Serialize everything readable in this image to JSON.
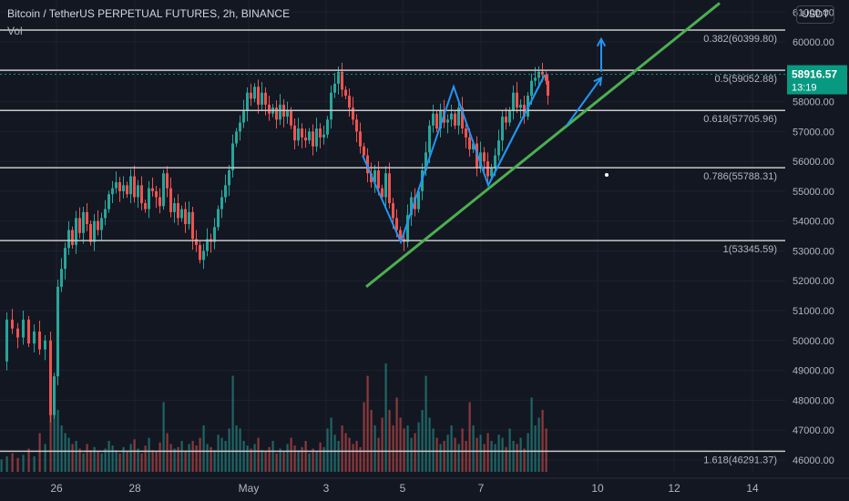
{
  "header": {
    "title": "Bitcoin / TetherUS PERPETUAL FUTURES, 2h, BINANCE",
    "indicator": "Vol",
    "currency": "USDT"
  },
  "price_badge": {
    "price": "58916.57",
    "countdown": "13:19",
    "color": "#089981"
  },
  "colors": {
    "background": "#131722",
    "up": "#26a69a",
    "down": "#ef5350",
    "fib_line": "#c9c9c9",
    "trendline": "#4caf50",
    "arrow": "#2196f3",
    "grid": "#1e222d"
  },
  "chart_data": {
    "type": "candlestick",
    "title": "Bitcoin / TetherUS PERPETUAL FUTURES, 2h, BINANCE",
    "ylim": [
      45600,
      61100
    ],
    "y_ticks": [
      "46000.00",
      "47000.00",
      "48000.00",
      "49000.00",
      "50000.00",
      "51000.00",
      "52000.00",
      "53000.00",
      "54000.00",
      "55000.00",
      "56000.00",
      "57000.00",
      "58000.00",
      "59000.00",
      "60000.00",
      "61000.00"
    ],
    "x_ticks": [
      "26",
      "28",
      "May",
      "3",
      "5",
      "7",
      "10",
      "12",
      "14"
    ],
    "fib_levels": [
      {
        "ratio": "0.382",
        "price": 60399.8,
        "label": "0.382(60399.80)"
      },
      {
        "ratio": "0.5",
        "price": 59052.88,
        "label": "0.5(59052.88)"
      },
      {
        "ratio": "0.618",
        "price": 57705.96,
        "label": "0.618(57705.96)"
      },
      {
        "ratio": "0.786",
        "price": 55788.31,
        "label": "0.786(55788.31)"
      },
      {
        "ratio": "1",
        "price": 53345.59,
        "label": "1(53345.59)"
      },
      {
        "ratio": "1.618",
        "price": 46291.37,
        "label": "1.618(46291.37)"
      }
    ],
    "price_path": [
      [
        0,
        49300
      ],
      [
        6,
        50700
      ],
      [
        12,
        50400
      ],
      [
        18,
        50100
      ],
      [
        24,
        50700
      ],
      [
        30,
        49900
      ],
      [
        36,
        50300
      ],
      [
        42,
        49700
      ],
      [
        48,
        50000
      ],
      [
        54,
        47500
      ],
      [
        58,
        48800
      ],
      [
        62,
        51800
      ],
      [
        66,
        52400
      ],
      [
        70,
        53100
      ],
      [
        74,
        53700
      ],
      [
        78,
        53200
      ],
      [
        82,
        54100
      ],
      [
        86,
        53600
      ],
      [
        90,
        54300
      ],
      [
        94,
        53900
      ],
      [
        98,
        53300
      ],
      [
        102,
        54000
      ],
      [
        106,
        53700
      ],
      [
        110,
        54100
      ],
      [
        114,
        54400
      ],
      [
        118,
        54900
      ],
      [
        122,
        55100
      ],
      [
        126,
        55300
      ],
      [
        130,
        55000
      ],
      [
        134,
        55200
      ],
      [
        138,
        54900
      ],
      [
        142,
        55500
      ],
      [
        146,
        54800
      ],
      [
        150,
        55200
      ],
      [
        154,
        54600
      ],
      [
        158,
        54400
      ],
      [
        162,
        55100
      ],
      [
        166,
        55000
      ],
      [
        170,
        54800
      ],
      [
        174,
        54500
      ],
      [
        178,
        55600
      ],
      [
        182,
        55100
      ],
      [
        186,
        54300
      ],
      [
        190,
        54600
      ],
      [
        194,
        54100
      ],
      [
        198,
        54400
      ],
      [
        202,
        53900
      ],
      [
        206,
        54300
      ],
      [
        210,
        53400
      ],
      [
        214,
        53200
      ],
      [
        218,
        52700
      ],
      [
        222,
        53000
      ],
      [
        226,
        53400
      ],
      [
        230,
        53300
      ],
      [
        234,
        53800
      ],
      [
        238,
        54400
      ],
      [
        242,
        54800
      ],
      [
        246,
        55200
      ],
      [
        250,
        55700
      ],
      [
        254,
        56600
      ],
      [
        258,
        57000
      ],
      [
        262,
        57300
      ],
      [
        266,
        57700
      ],
      [
        270,
        58300
      ],
      [
        274,
        58100
      ],
      [
        278,
        58500
      ],
      [
        282,
        57900
      ],
      [
        286,
        58300
      ],
      [
        290,
        57900
      ],
      [
        294,
        57600
      ],
      [
        298,
        57800
      ],
      [
        302,
        57400
      ],
      [
        306,
        57900
      ],
      [
        310,
        57500
      ],
      [
        314,
        57700
      ],
      [
        318,
        57200
      ],
      [
        322,
        56700
      ],
      [
        326,
        57100
      ],
      [
        330,
        56800
      ],
      [
        334,
        56700
      ],
      [
        338,
        57000
      ],
      [
        342,
        56500
      ],
      [
        346,
        57100
      ],
      [
        350,
        56800
      ],
      [
        354,
        56900
      ],
      [
        358,
        57400
      ],
      [
        362,
        58300
      ],
      [
        366,
        58600
      ],
      [
        370,
        59000
      ],
      [
        374,
        58400
      ],
      [
        378,
        58200
      ],
      [
        382,
        57800
      ],
      [
        386,
        57400
      ],
      [
        390,
        57000
      ],
      [
        394,
        56500
      ],
      [
        398,
        56200
      ],
      [
        402,
        55600
      ],
      [
        406,
        55300
      ],
      [
        410,
        55700
      ],
      [
        414,
        55100
      ],
      [
        418,
        54800
      ],
      [
        422,
        55600
      ],
      [
        426,
        54600
      ],
      [
        430,
        54100
      ],
      [
        434,
        53700
      ],
      [
        438,
        53400
      ],
      [
        442,
        53300
      ],
      [
        446,
        54200
      ],
      [
        450,
        54800
      ],
      [
        454,
        54400
      ],
      [
        458,
        55000
      ],
      [
        462,
        55700
      ],
      [
        466,
        56300
      ],
      [
        470,
        57200
      ],
      [
        474,
        57600
      ],
      [
        478,
        57100
      ],
      [
        482,
        57700
      ],
      [
        486,
        57300
      ],
      [
        490,
        57400
      ],
      [
        494,
        57600
      ],
      [
        498,
        57200
      ],
      [
        502,
        57800
      ],
      [
        506,
        57100
      ],
      [
        510,
        56800
      ],
      [
        514,
        56400
      ],
      [
        518,
        56600
      ],
      [
        522,
        55800
      ],
      [
        526,
        56300
      ],
      [
        530,
        56000
      ],
      [
        534,
        55500
      ],
      [
        538,
        55800
      ],
      [
        542,
        56200
      ],
      [
        546,
        56700
      ],
      [
        550,
        57500
      ],
      [
        554,
        57300
      ],
      [
        558,
        57700
      ],
      [
        562,
        58300
      ],
      [
        566,
        57800
      ],
      [
        570,
        57900
      ],
      [
        574,
        57500
      ],
      [
        578,
        58200
      ],
      [
        582,
        58700
      ],
      [
        586,
        58800
      ],
      [
        590,
        59000
      ],
      [
        594,
        58900
      ],
      [
        598,
        58700
      ],
      [
        600,
        58200
      ]
    ],
    "volumes": [
      [
        0,
        0.08
      ],
      [
        6,
        0.1
      ],
      [
        12,
        0.12
      ],
      [
        18,
        0.09
      ],
      [
        24,
        0.11
      ],
      [
        30,
        0.15
      ],
      [
        36,
        0.1
      ],
      [
        42,
        0.25
      ],
      [
        48,
        0.18
      ],
      [
        54,
        0.55
      ],
      [
        58,
        0.45
      ],
      [
        62,
        0.4
      ],
      [
        66,
        0.3
      ],
      [
        70,
        0.25
      ],
      [
        74,
        0.22
      ],
      [
        78,
        0.18
      ],
      [
        82,
        0.2
      ],
      [
        86,
        0.15
      ],
      [
        90,
        0.12
      ],
      [
        94,
        0.18
      ],
      [
        98,
        0.14
      ],
      [
        102,
        0.16
      ],
      [
        106,
        0.13
      ],
      [
        110,
        0.12
      ],
      [
        114,
        0.15
      ],
      [
        118,
        0.2
      ],
      [
        122,
        0.17
      ],
      [
        126,
        0.14
      ],
      [
        130,
        0.12
      ],
      [
        134,
        0.16
      ],
      [
        138,
        0.13
      ],
      [
        142,
        0.18
      ],
      [
        146,
        0.21
      ],
      [
        150,
        0.15
      ],
      [
        154,
        0.12
      ],
      [
        158,
        0.17
      ],
      [
        162,
        0.22
      ],
      [
        166,
        0.14
      ],
      [
        170,
        0.13
      ],
      [
        174,
        0.19
      ],
      [
        178,
        0.45
      ],
      [
        182,
        0.25
      ],
      [
        186,
        0.18
      ],
      [
        190,
        0.15
      ],
      [
        194,
        0.16
      ],
      [
        198,
        0.2
      ],
      [
        202,
        0.13
      ],
      [
        206,
        0.18
      ],
      [
        210,
        0.2
      ],
      [
        214,
        0.17
      ],
      [
        218,
        0.22
      ],
      [
        222,
        0.3
      ],
      [
        226,
        0.18
      ],
      [
        230,
        0.16
      ],
      [
        234,
        0.14
      ],
      [
        238,
        0.24
      ],
      [
        242,
        0.22
      ],
      [
        246,
        0.2
      ],
      [
        250,
        0.28
      ],
      [
        254,
        0.62
      ],
      [
        258,
        0.3
      ],
      [
        262,
        0.28
      ],
      [
        266,
        0.2
      ],
      [
        270,
        0.17
      ],
      [
        274,
        0.15
      ],
      [
        278,
        0.18
      ],
      [
        282,
        0.22
      ],
      [
        286,
        0.14
      ],
      [
        290,
        0.13
      ],
      [
        294,
        0.16
      ],
      [
        298,
        0.2
      ],
      [
        302,
        0.12
      ],
      [
        306,
        0.15
      ],
      [
        310,
        0.13
      ],
      [
        314,
        0.18
      ],
      [
        318,
        0.22
      ],
      [
        322,
        0.17
      ],
      [
        326,
        0.14
      ],
      [
        330,
        0.16
      ],
      [
        334,
        0.2
      ],
      [
        338,
        0.12
      ],
      [
        342,
        0.15
      ],
      [
        346,
        0.13
      ],
      [
        350,
        0.19
      ],
      [
        354,
        0.16
      ],
      [
        358,
        0.28
      ],
      [
        362,
        0.35
      ],
      [
        366,
        0.24
      ],
      [
        370,
        0.2
      ],
      [
        374,
        0.3
      ],
      [
        378,
        0.25
      ],
      [
        382,
        0.22
      ],
      [
        386,
        0.18
      ],
      [
        390,
        0.2
      ],
      [
        394,
        0.16
      ],
      [
        398,
        0.45
      ],
      [
        402,
        0.62
      ],
      [
        406,
        0.4
      ],
      [
        410,
        0.3
      ],
      [
        414,
        0.22
      ],
      [
        418,
        0.35
      ],
      [
        422,
        0.7
      ],
      [
        426,
        0.4
      ],
      [
        430,
        0.3
      ],
      [
        434,
        0.48
      ],
      [
        438,
        0.35
      ],
      [
        442,
        0.28
      ],
      [
        446,
        0.3
      ],
      [
        450,
        0.22
      ],
      [
        454,
        0.25
      ],
      [
        458,
        0.32
      ],
      [
        462,
        0.4
      ],
      [
        466,
        0.62
      ],
      [
        470,
        0.35
      ],
      [
        474,
        0.28
      ],
      [
        478,
        0.22
      ],
      [
        482,
        0.18
      ],
      [
        486,
        0.2
      ],
      [
        490,
        0.24
      ],
      [
        494,
        0.3
      ],
      [
        498,
        0.22
      ],
      [
        502,
        0.18
      ],
      [
        506,
        0.28
      ],
      [
        510,
        0.2
      ],
      [
        514,
        0.45
      ],
      [
        518,
        0.3
      ],
      [
        522,
        0.22
      ],
      [
        526,
        0.24
      ],
      [
        530,
        0.18
      ],
      [
        534,
        0.25
      ],
      [
        538,
        0.2
      ],
      [
        542,
        0.18
      ],
      [
        546,
        0.24
      ],
      [
        550,
        0.22
      ],
      [
        554,
        0.16
      ],
      [
        558,
        0.28
      ],
      [
        562,
        0.2
      ],
      [
        566,
        0.18
      ],
      [
        570,
        0.22
      ],
      [
        574,
        0.15
      ],
      [
        578,
        0.25
      ],
      [
        582,
        0.48
      ],
      [
        586,
        0.3
      ],
      [
        590,
        0.35
      ],
      [
        594,
        0.4
      ],
      [
        598,
        0.28
      ]
    ],
    "trendline": [
      [
        402,
        51800
      ],
      [
        790,
        61300
      ]
    ],
    "pattern_lines": [
      [
        [
          398,
          56200
        ],
        [
          440,
          53300
        ],
        [
          498,
          58500
        ],
        [
          536,
          55200
        ],
        [
          598,
          58900
        ]
      ],
      [
        [
          536,
          55200
        ],
        [
          598,
          58900
        ]
      ]
    ],
    "arrows": [
      {
        "from": [
          622,
          57200
        ],
        "to": [
          660,
          58800
        ]
      },
      {
        "from": [
          660,
          59000
        ],
        "to": [
          660,
          60100
        ]
      }
    ],
    "x_tick_positions": [
      62,
      148,
      273,
      358,
      442,
      528,
      656,
      740,
      826
    ]
  }
}
